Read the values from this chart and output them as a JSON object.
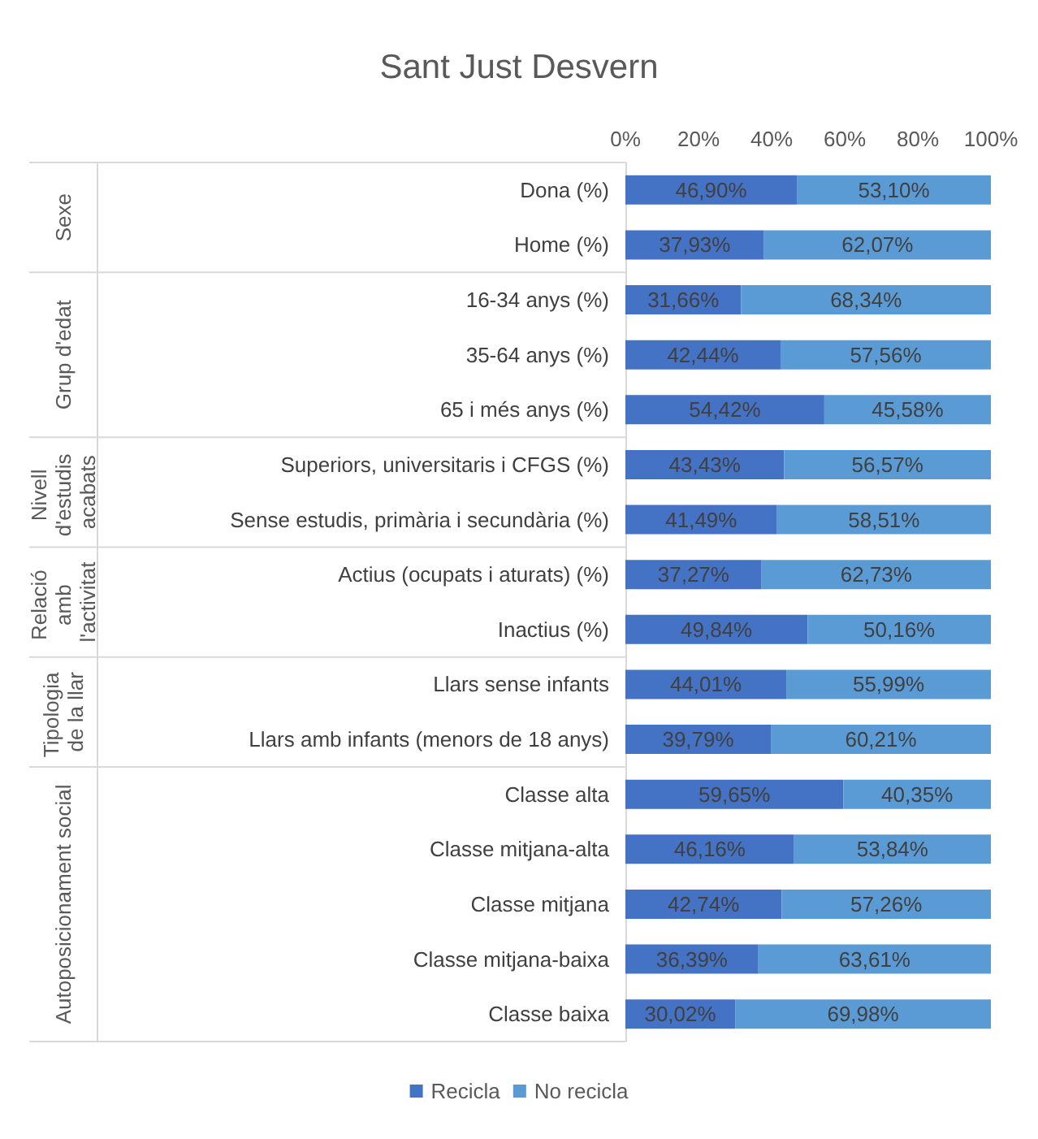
{
  "chart_data": {
    "type": "bar",
    "orientation": "horizontal",
    "stacked": true,
    "title": "Sant Just Desvern",
    "categories": [
      "Dona (%)",
      "Home (%)",
      "16-34 anys (%)",
      "35-64 anys (%)",
      "65 i més anys (%)",
      "Superiors, universitaris i CFGS (%)",
      "Sense estudis, primària i secundària (%)",
      "Actius (ocupats i aturats) (%)",
      "Inactius (%)",
      "Llars sense infants",
      "Llars amb infants (menors de 18 anys)",
      "Classe alta",
      "Classe mitjana-alta",
      "Classe mitjana",
      "Classe mitjana-baixa",
      "Classe baixa"
    ],
    "series": [
      {
        "name": "Recicla",
        "color": "#4472c4",
        "values": [
          46.9,
          37.93,
          31.66,
          42.44,
          54.42,
          43.43,
          41.49,
          37.27,
          49.84,
          44.01,
          39.79,
          59.65,
          46.16,
          42.74,
          36.39,
          30.02
        ],
        "value_labels": [
          "46,90%",
          "37,93%",
          "31,66%",
          "42,44%",
          "54,42%",
          "43,43%",
          "41,49%",
          "37,27%",
          "49,84%",
          "44,01%",
          "39,79%",
          "59,65%",
          "46,16%",
          "42,74%",
          "36,39%",
          "30,02%"
        ]
      },
      {
        "name": "No recicla",
        "color": "#5b9bd5",
        "values": [
          53.1,
          62.07,
          68.34,
          57.56,
          45.58,
          56.57,
          58.51,
          62.73,
          50.16,
          55.99,
          60.21,
          40.35,
          53.84,
          57.26,
          63.61,
          69.98
        ],
        "value_labels": [
          "53,10%",
          "62,07%",
          "68,34%",
          "57,56%",
          "45,58%",
          "56,57%",
          "58,51%",
          "62,73%",
          "50,16%",
          "55,99%",
          "60,21%",
          "40,35%",
          "53,84%",
          "57,26%",
          "63,61%",
          "69,98%"
        ]
      }
    ],
    "xlim": [
      0,
      100
    ],
    "xticks": [
      {
        "value": 0,
        "label": "0%"
      },
      {
        "value": 20,
        "label": "20%"
      },
      {
        "value": 40,
        "label": "40%"
      },
      {
        "value": 60,
        "label": "60%"
      },
      {
        "value": 80,
        "label": "80%"
      },
      {
        "value": 100,
        "label": "100%"
      }
    ],
    "annotations": [
      "Sexe",
      "Grup d'edat",
      "Nivell d'estudis acabats",
      "Relació amb l'activitat",
      "Tipologia de la llar",
      "Autoposicionament social"
    ],
    "grid": false,
    "legend": "bottom"
  }
}
